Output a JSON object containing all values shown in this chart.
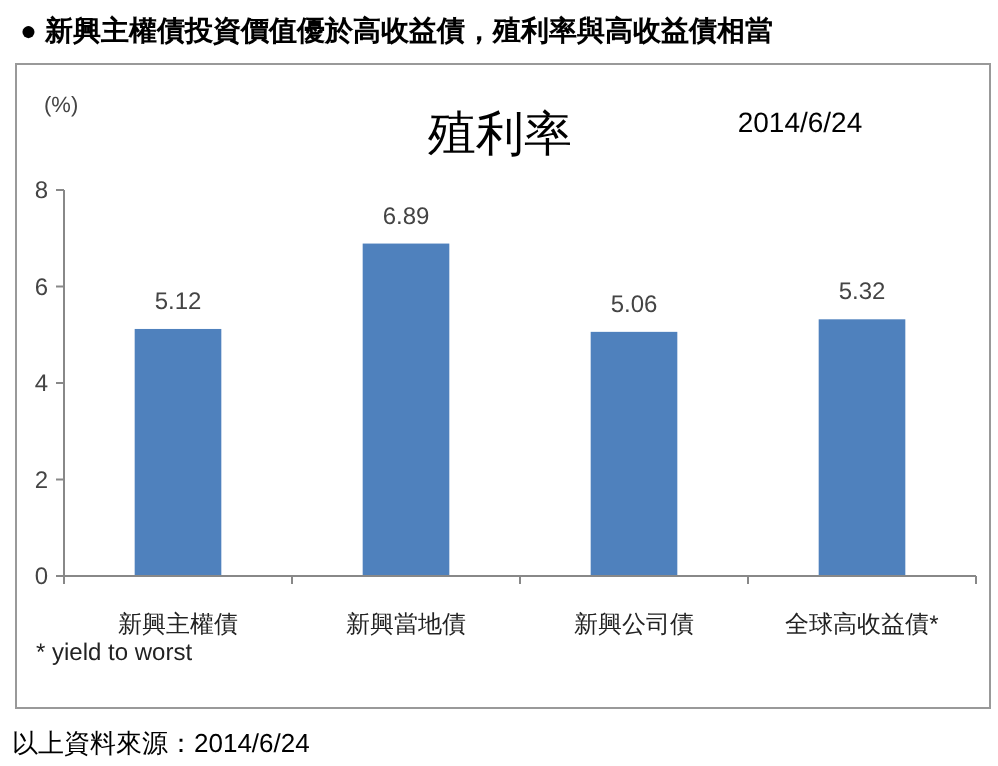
{
  "chart_data": {
    "type": "bar",
    "title": "殖利率",
    "subtitle": "2014/6/24",
    "ylabel": "(%)",
    "categories": [
      "新興主權債",
      "新興當地債",
      "新興公司債",
      "全球高收益債*"
    ],
    "values": [
      5.12,
      6.89,
      5.06,
      5.32
    ],
    "color": "#4f81bd",
    "ylim": [
      0,
      8
    ],
    "yticks": [
      0,
      2,
      4,
      6,
      8
    ],
    "grid": false,
    "data_labels": true,
    "annotations": [
      "● 新興主權債投資價值優於高收益債，殖利率與高收益債相當",
      "* yield to worst",
      "以上資料來源：2014/6/24"
    ]
  }
}
